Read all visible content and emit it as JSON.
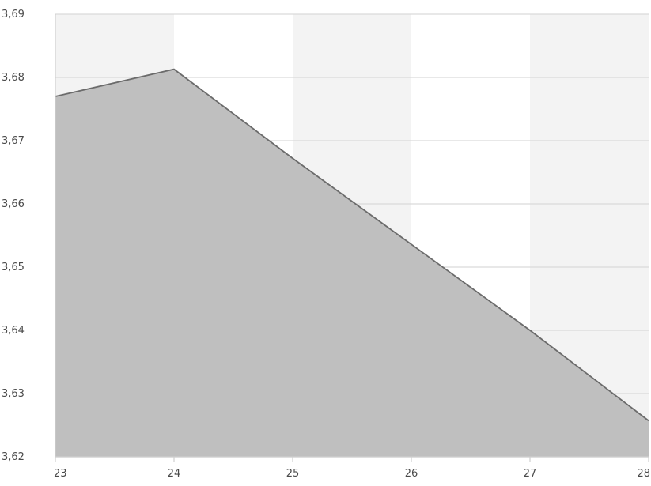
{
  "chart_data": {
    "type": "area",
    "title": "",
    "xlabel": "",
    "ylabel": "",
    "x": [
      23,
      24,
      25,
      26,
      27,
      28
    ],
    "x_tick_labels": [
      "23",
      "24",
      "25",
      "26",
      "27",
      "28"
    ],
    "y_tick_labels": [
      "3,62",
      "3,63",
      "3,64",
      "3,65",
      "3,66",
      "3,67",
      "3,68",
      "3,69"
    ],
    "y_ticks": [
      3.62,
      3.63,
      3.64,
      3.65,
      3.66,
      3.67,
      3.68,
      3.69
    ],
    "xlim": [
      23,
      28
    ],
    "ylim": [
      3.62,
      3.69
    ],
    "series": [
      {
        "values": [
          3.677,
          3.6813,
          3.6672,
          3.6536,
          3.64,
          3.6257
        ]
      }
    ],
    "grid": "horizontal",
    "legend": "none",
    "colors": {
      "area_fill": "#bfbfbf",
      "line": "#6b6b6b",
      "band_shaded": "#f3f3f3",
      "band_plain": "#ffffff",
      "gridline": "#d9d9d9",
      "axis": "#cfcfcf",
      "tick_text": "#4a4a4a"
    }
  }
}
